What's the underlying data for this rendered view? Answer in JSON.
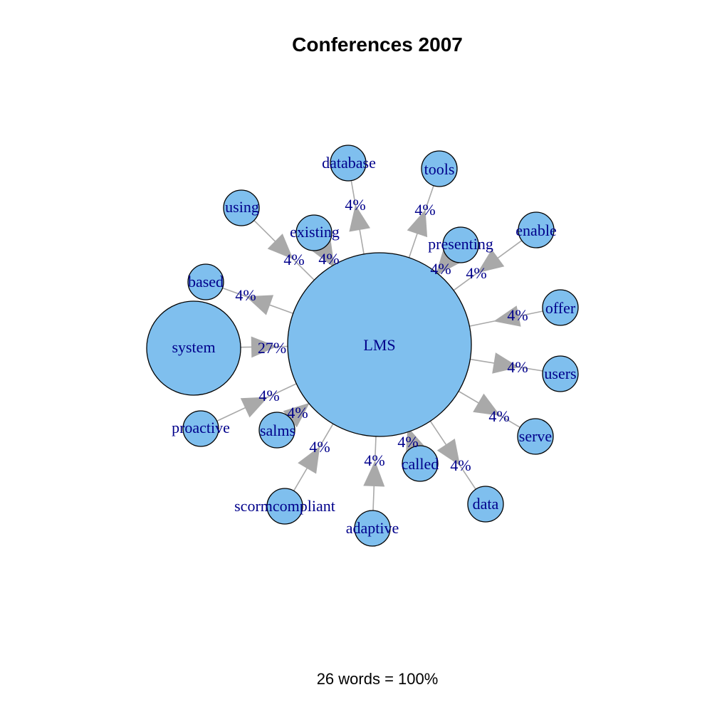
{
  "title": "Conferences 2007",
  "footer": "26 words = 100%",
  "colors": {
    "node_fill": "#7fbfee",
    "node_stroke": "#000000",
    "edge": "#a9a9a9",
    "label": "#00008b"
  },
  "center": {
    "id": "lms",
    "label": "LMS"
  },
  "nodes": [
    {
      "id": "system",
      "label": "system",
      "count": 7
    },
    {
      "id": "database",
      "label": "database",
      "count": 1
    },
    {
      "id": "tools",
      "label": "tools",
      "count": 1
    },
    {
      "id": "using",
      "label": "using",
      "count": 1
    },
    {
      "id": "existing",
      "label": "existing",
      "count": 1
    },
    {
      "id": "presenting",
      "label": "presenting",
      "count": 1
    },
    {
      "id": "enable",
      "label": "enable",
      "count": 1
    },
    {
      "id": "based",
      "label": "based",
      "count": 1
    },
    {
      "id": "offer",
      "label": "offer",
      "count": 1
    },
    {
      "id": "users",
      "label": "users",
      "count": 1
    },
    {
      "id": "proactive",
      "label": "proactive",
      "count": 1
    },
    {
      "id": "salms",
      "label": "salms",
      "count": 1
    },
    {
      "id": "serve",
      "label": "serve",
      "count": 1
    },
    {
      "id": "called",
      "label": "called",
      "count": 1
    },
    {
      "id": "data",
      "label": "data",
      "count": 1
    },
    {
      "id": "scormcompliant",
      "label": "scormcompliant",
      "count": 1
    },
    {
      "id": "adaptive",
      "label": "adaptive",
      "count": 1
    }
  ],
  "edges": [
    {
      "from": "system",
      "to": "lms",
      "label": "27%"
    },
    {
      "from": "lms",
      "to": "database",
      "label": "4%"
    },
    {
      "from": "lms",
      "to": "tools",
      "label": "4%"
    },
    {
      "from": "using",
      "to": "lms",
      "label": "4%"
    },
    {
      "from": "existing",
      "to": "lms",
      "label": "4%"
    },
    {
      "from": "presenting",
      "to": "lms",
      "label": "4%"
    },
    {
      "from": "enable",
      "to": "lms",
      "label": "4%"
    },
    {
      "from": "lms",
      "to": "based",
      "label": "4%"
    },
    {
      "from": "offer",
      "to": "lms",
      "label": "4%"
    },
    {
      "from": "lms",
      "to": "users",
      "label": "4%"
    },
    {
      "from": "proactive",
      "to": "lms",
      "label": "4%"
    },
    {
      "from": "salms",
      "to": "lms",
      "label": "4%"
    },
    {
      "from": "lms",
      "to": "serve",
      "label": "4%"
    },
    {
      "from": "called",
      "to": "lms",
      "label": "4%"
    },
    {
      "from": "lms",
      "to": "data",
      "label": "4%"
    },
    {
      "from": "scormcompliant",
      "to": "lms",
      "label": "4%"
    },
    {
      "from": "adaptive",
      "to": "lms",
      "label": "4%"
    }
  ]
}
